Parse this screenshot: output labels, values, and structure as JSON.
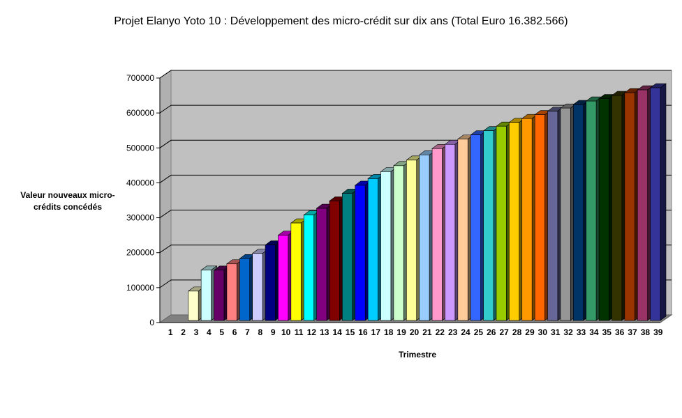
{
  "chart_data": {
    "type": "bar",
    "title": "Projet Elanyo Yoto 10 : Développement des micro-crédit sur dix ans (Total Euro 16.382.566)",
    "xlabel": "Trimestre",
    "ylabel": "Valeur nouveaux micro-crédits concédés",
    "ylim": [
      0,
      700000
    ],
    "yticks": [
      "0",
      "100000",
      "200000",
      "300000",
      "400000",
      "500000",
      "600000",
      "700000"
    ],
    "grid": true,
    "legend": "none",
    "categories": [
      "1",
      "2",
      "3",
      "4",
      "5",
      "6",
      "7",
      "8",
      "9",
      "10",
      "11",
      "12",
      "13",
      "14",
      "15",
      "16",
      "17",
      "18",
      "19",
      "20",
      "21",
      "22",
      "23",
      "24",
      "25",
      "26",
      "27",
      "28",
      "29",
      "30",
      "31",
      "32",
      "33",
      "34",
      "35",
      "36",
      "37",
      "38",
      "39"
    ],
    "values": [
      0,
      0,
      90000,
      150000,
      150000,
      168000,
      183000,
      198000,
      222000,
      250000,
      285000,
      308000,
      327000,
      348000,
      370000,
      393000,
      412000,
      432000,
      449000,
      465000,
      480000,
      498000,
      510000,
      525000,
      537000,
      549000,
      562000,
      573000,
      584000,
      595000,
      605000,
      614000,
      624000,
      634000,
      641000,
      650000,
      658000,
      666000,
      672000
    ],
    "colors": [
      "#ffffcc",
      "#ffffcc",
      "#ffffcc",
      "#ccffff",
      "#660066",
      "#ff8080",
      "#0066cc",
      "#ccccff",
      "#000080",
      "#ff00ff",
      "#ffff00",
      "#00ffff",
      "#800080",
      "#800000",
      "#008080",
      "#0000ff",
      "#00ccff",
      "#ccffff",
      "#ccffcc",
      "#ffff99",
      "#99ccff",
      "#ff99cc",
      "#cc99ff",
      "#ffcc99",
      "#3366ff",
      "#33cccc",
      "#99cc00",
      "#ffcc00",
      "#ff9900",
      "#ff6600",
      "#666699",
      "#969696",
      "#003366",
      "#339966",
      "#003300",
      "#333300",
      "#993300",
      "#993366",
      "#333399"
    ],
    "wall_color": "#c0c0c0",
    "floor_color": "#808080"
  }
}
